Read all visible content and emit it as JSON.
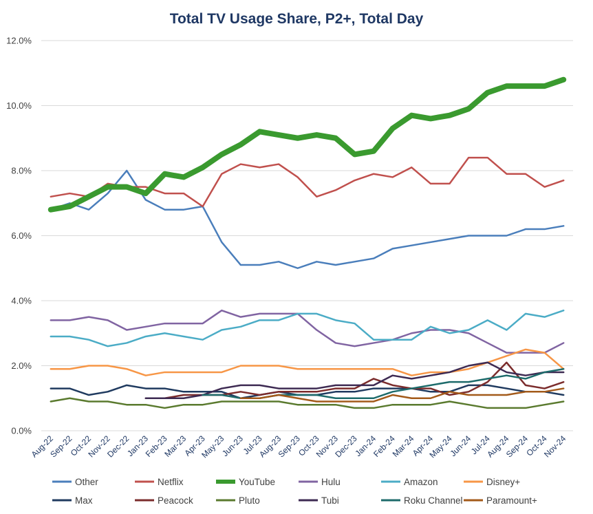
{
  "chart_data": {
    "type": "line",
    "title": "Total TV Usage Share, P2+, Total Day",
    "xlabel": "",
    "ylabel": "",
    "ylim": [
      0,
      12
    ],
    "yticks": [
      "0.0%",
      "2.0%",
      "4.0%",
      "6.0%",
      "8.0%",
      "10.0%",
      "12.0%"
    ],
    "ytick_values": [
      0,
      2,
      4,
      6,
      8,
      10,
      12
    ],
    "grid": true,
    "legend_position": "bottom",
    "categories": [
      "Aug-22",
      "Sep-22",
      "Oct-22",
      "Nov-22",
      "Dec-22",
      "Jan-23",
      "Feb-23",
      "Mar-23",
      "Apr-23",
      "May-23",
      "Jun-23",
      "Jul-23",
      "Aug-23",
      "Sep-23",
      "Oct-23",
      "Nov-23",
      "Dec-23",
      "Jan-24",
      "Feb-24",
      "Mar-24",
      "Apr-24",
      "May-24",
      "Jun-24",
      "Jul-24",
      "Aug-24",
      "Sep-24",
      "Oct-24",
      "Nov-24"
    ],
    "series": [
      {
        "name": "Other",
        "color": "#4a7ebb",
        "width": 2.5,
        "values": [
          6.8,
          7.0,
          6.8,
          7.3,
          8.0,
          7.1,
          6.8,
          6.8,
          6.9,
          5.8,
          5.1,
          5.1,
          5.2,
          5.0,
          5.2,
          5.1,
          5.2,
          5.3,
          5.6,
          5.7,
          5.8,
          5.9,
          6.0,
          6.0,
          6.0,
          6.2,
          6.2,
          6.3
        ]
      },
      {
        "name": "Netflix",
        "color": "#c0504d",
        "width": 2.5,
        "values": [
          7.2,
          7.3,
          7.2,
          7.6,
          7.5,
          7.5,
          7.3,
          7.3,
          6.9,
          7.9,
          8.2,
          8.1,
          8.2,
          7.8,
          7.2,
          7.4,
          7.7,
          7.9,
          7.8,
          8.1,
          7.6,
          7.6,
          8.4,
          8.4,
          7.9,
          7.9,
          7.5,
          7.7
        ]
      },
      {
        "name": "YouTube",
        "color": "#3a9a2f",
        "width": 8,
        "values": [
          6.8,
          6.9,
          7.2,
          7.5,
          7.5,
          7.3,
          7.9,
          7.8,
          8.1,
          8.5,
          8.8,
          9.2,
          9.1,
          9.0,
          9.1,
          9.0,
          8.5,
          8.6,
          9.3,
          9.7,
          9.6,
          9.7,
          9.9,
          10.4,
          10.6,
          10.6,
          10.6,
          10.8
        ]
      },
      {
        "name": "Hulu",
        "color": "#8064a2",
        "width": 2.5,
        "values": [
          3.4,
          3.4,
          3.5,
          3.4,
          3.1,
          3.2,
          3.3,
          3.3,
          3.3,
          3.7,
          3.5,
          3.6,
          3.6,
          3.6,
          3.1,
          2.7,
          2.6,
          2.7,
          2.8,
          3.0,
          3.1,
          3.1,
          3.0,
          2.7,
          2.4,
          2.4,
          2.4,
          2.7
        ]
      },
      {
        "name": "Amazon",
        "color": "#4bacc6",
        "width": 2.5,
        "values": [
          2.9,
          2.9,
          2.8,
          2.6,
          2.7,
          2.9,
          3.0,
          2.9,
          2.8,
          3.1,
          3.2,
          3.4,
          3.4,
          3.6,
          3.6,
          3.4,
          3.3,
          2.8,
          2.8,
          2.8,
          3.2,
          3.0,
          3.1,
          3.4,
          3.1,
          3.6,
          3.5,
          3.7
        ]
      },
      {
        "name": "Disney+",
        "color": "#f79646",
        "width": 2.5,
        "values": [
          1.9,
          1.9,
          2.0,
          2.0,
          1.9,
          1.7,
          1.8,
          1.8,
          1.8,
          1.8,
          2.0,
          2.0,
          2.0,
          1.9,
          1.9,
          1.9,
          1.9,
          1.9,
          1.9,
          1.7,
          1.8,
          1.8,
          1.9,
          2.1,
          2.3,
          2.5,
          2.4,
          1.9
        ]
      },
      {
        "name": "Max",
        "color": "#1f3a5f",
        "width": 2.5,
        "values": [
          1.3,
          1.3,
          1.1,
          1.2,
          1.4,
          1.3,
          1.3,
          1.2,
          1.2,
          1.2,
          1.0,
          1.1,
          1.2,
          1.1,
          1.1,
          1.2,
          1.2,
          1.3,
          1.3,
          1.3,
          1.2,
          1.2,
          1.4,
          1.4,
          1.3,
          1.2,
          1.2,
          1.1
        ]
      },
      {
        "name": "Peacock",
        "color": "#7b2c2c",
        "width": 2.5,
        "values": [
          null,
          null,
          null,
          null,
          null,
          1.0,
          1.0,
          1.1,
          1.1,
          1.1,
          1.2,
          1.1,
          1.2,
          1.2,
          1.2,
          1.3,
          1.3,
          1.6,
          1.4,
          1.3,
          1.3,
          1.1,
          1.2,
          1.5,
          2.1,
          1.4,
          1.3,
          1.5
        ]
      },
      {
        "name": "Pluto",
        "color": "#5a7a2e",
        "width": 2.5,
        "values": [
          0.9,
          1.0,
          0.9,
          0.9,
          0.8,
          0.8,
          0.7,
          0.8,
          0.8,
          0.9,
          0.9,
          0.9,
          0.9,
          0.8,
          0.8,
          0.8,
          0.7,
          0.7,
          0.8,
          0.8,
          0.8,
          0.9,
          0.8,
          0.7,
          0.7,
          0.7,
          0.8,
          0.9
        ]
      },
      {
        "name": "Tubi",
        "color": "#3d2a52",
        "width": 2.5,
        "values": [
          null,
          null,
          null,
          null,
          null,
          1.0,
          1.0,
          1.0,
          1.1,
          1.3,
          1.4,
          1.4,
          1.3,
          1.3,
          1.3,
          1.4,
          1.4,
          1.4,
          1.7,
          1.6,
          1.7,
          1.8,
          2.0,
          2.1,
          1.8,
          1.7,
          1.8,
          1.8
        ]
      },
      {
        "name": "Roku Channel",
        "color": "#1d6b6b",
        "width": 2.5,
        "values": [
          null,
          null,
          null,
          null,
          null,
          null,
          null,
          null,
          1.1,
          1.1,
          1.0,
          1.0,
          1.1,
          1.1,
          1.1,
          1.0,
          1.0,
          1.0,
          1.2,
          1.3,
          1.4,
          1.5,
          1.5,
          1.6,
          1.7,
          1.6,
          1.8,
          1.9
        ]
      },
      {
        "name": "Paramount+",
        "color": "#a35a1a",
        "width": 2.5,
        "values": [
          null,
          null,
          null,
          null,
          null,
          null,
          null,
          null,
          null,
          null,
          1.0,
          1.0,
          1.1,
          1.0,
          0.9,
          0.9,
          0.9,
          0.9,
          1.1,
          1.0,
          1.0,
          1.2,
          1.1,
          1.1,
          1.1,
          1.2,
          1.2,
          1.3
        ]
      }
    ]
  }
}
